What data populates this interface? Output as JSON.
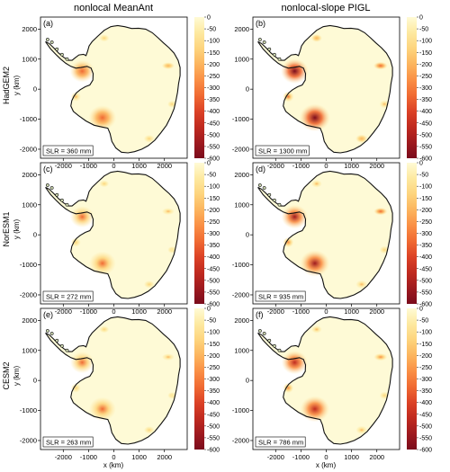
{
  "columns": [
    "nonlocal MeanAnt",
    "nonlocal-slope PIGL"
  ],
  "rows": [
    {
      "model": "HadGEM2",
      "ylabel": "y (km)"
    },
    {
      "model": "NorESM1",
      "ylabel": "y (km)"
    },
    {
      "model": "CESM2",
      "ylabel": "y (km)"
    }
  ],
  "panels": [
    {
      "label": "(a)",
      "slr": "SLR = 360 mm",
      "intensity": 0.6
    },
    {
      "label": "(b)",
      "slr": "SLR = 1300 mm",
      "intensity": 1.0
    },
    {
      "label": "(c)",
      "slr": "SLR = 272 mm",
      "intensity": 0.5
    },
    {
      "label": "(d)",
      "slr": "SLR = 935 mm",
      "intensity": 0.85
    },
    {
      "label": "(e)",
      "slr": "SLR = 263 mm",
      "intensity": 0.5
    },
    {
      "label": "(f)",
      "slr": "SLR = 786 mm",
      "intensity": 0.8
    }
  ],
  "x_ticks": [
    -2000,
    -1000,
    0,
    1000,
    2000
  ],
  "y_ticks": [
    2000,
    1000,
    0,
    -1000,
    -2000
  ],
  "xlabel": "x (km)",
  "colorbar": {
    "ticks": [
      "0",
      "-50",
      "-100",
      "-150",
      "-200",
      "-250",
      "-300",
      "-350",
      "-400",
      "-450",
      "-500",
      "-550",
      "-600"
    ],
    "colors": [
      "#fffbd5",
      "#fde9a0",
      "#fdd47d",
      "#fcb55e",
      "#fa8f45",
      "#f06a32",
      "#dc4226",
      "#c02a1f",
      "#9e1a1f",
      "#7a0c1c"
    ]
  },
  "colors": {
    "ice": "#fefad6",
    "coast": "#111111"
  }
}
